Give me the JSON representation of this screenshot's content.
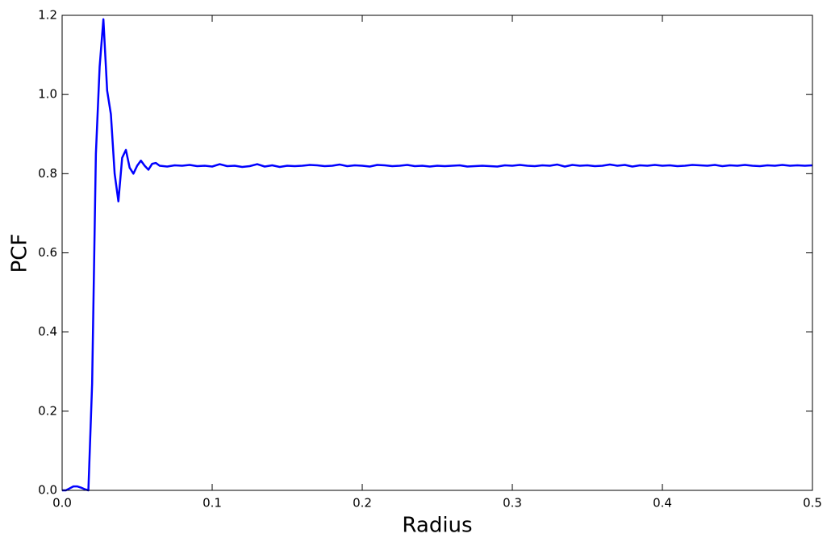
{
  "chart_data": {
    "type": "line",
    "xlabel": "Radius",
    "ylabel": "PCF",
    "x": [
      0,
      0.0025,
      0.005,
      0.0075,
      0.01,
      0.0125,
      0.015,
      0.0175,
      0.02,
      0.0225,
      0.025,
      0.0275,
      0.03,
      0.0325,
      0.035,
      0.0375,
      0.04,
      0.0425,
      0.045,
      0.0475,
      0.05,
      0.0525,
      0.055,
      0.0575,
      0.06,
      0.0625,
      0.065,
      0.07,
      0.075,
      0.08,
      0.085,
      0.09,
      0.095,
      0.1,
      0.105,
      0.11,
      0.115,
      0.12,
      0.125,
      0.13,
      0.135,
      0.14,
      0.145,
      0.15,
      0.155,
      0.16,
      0.165,
      0.17,
      0.175,
      0.18,
      0.185,
      0.19,
      0.195,
      0.2,
      0.205,
      0.21,
      0.215,
      0.22,
      0.225,
      0.23,
      0.235,
      0.24,
      0.245,
      0.25,
      0.255,
      0.26,
      0.265,
      0.27,
      0.275,
      0.28,
      0.285,
      0.29,
      0.295,
      0.3,
      0.305,
      0.31,
      0.315,
      0.32,
      0.325,
      0.33,
      0.335,
      0.34,
      0.345,
      0.35,
      0.355,
      0.36,
      0.365,
      0.37,
      0.375,
      0.38,
      0.385,
      0.39,
      0.395,
      0.4,
      0.405,
      0.41,
      0.415,
      0.42,
      0.425,
      0.43,
      0.435,
      0.44,
      0.445,
      0.45,
      0.455,
      0.46,
      0.465,
      0.47,
      0.475,
      0.48,
      0.485,
      0.49,
      0.495,
      0.5
    ],
    "series": [
      {
        "color": "#0000ff",
        "values": [
          0,
          0,
          0.005,
          0.01,
          0.01,
          0.007,
          0.003,
          0,
          0.27,
          0.85,
          1.07,
          1.19,
          1.01,
          0.95,
          0.8,
          0.73,
          0.84,
          0.86,
          0.815,
          0.8,
          0.82,
          0.833,
          0.82,
          0.81,
          0.825,
          0.827,
          0.82,
          0.818,
          0.821,
          0.82,
          0.822,
          0.819,
          0.82,
          0.818,
          0.824,
          0.819,
          0.82,
          0.817,
          0.819,
          0.824,
          0.818,
          0.821,
          0.817,
          0.82,
          0.819,
          0.82,
          0.822,
          0.821,
          0.819,
          0.82,
          0.823,
          0.819,
          0.821,
          0.82,
          0.818,
          0.822,
          0.821,
          0.819,
          0.82,
          0.822,
          0.819,
          0.82,
          0.818,
          0.82,
          0.819,
          0.82,
          0.821,
          0.818,
          0.819,
          0.82,
          0.819,
          0.818,
          0.821,
          0.82,
          0.822,
          0.82,
          0.819,
          0.821,
          0.82,
          0.823,
          0.818,
          0.822,
          0.82,
          0.821,
          0.819,
          0.82,
          0.823,
          0.82,
          0.822,
          0.818,
          0.821,
          0.82,
          0.822,
          0.82,
          0.821,
          0.819,
          0.82,
          0.822,
          0.821,
          0.82,
          0.822,
          0.819,
          0.821,
          0.82,
          0.822,
          0.82,
          0.819,
          0.821,
          0.82,
          0.822,
          0.82,
          0.821,
          0.82,
          0.821
        ]
      }
    ],
    "xlim": [
      0,
      0.5
    ],
    "xticks": [
      {
        "value": 0,
        "label": "0.0"
      },
      0.1,
      0.2,
      0.3,
      0.4,
      0.5
    ],
    "ylim": [
      0,
      1.2
    ],
    "yticks": [
      {
        "value": 0,
        "label": "0.0"
      },
      0.2,
      0.4,
      0.6,
      0.8,
      {
        "value": 1,
        "label": "1.0"
      },
      1.2
    ]
  }
}
